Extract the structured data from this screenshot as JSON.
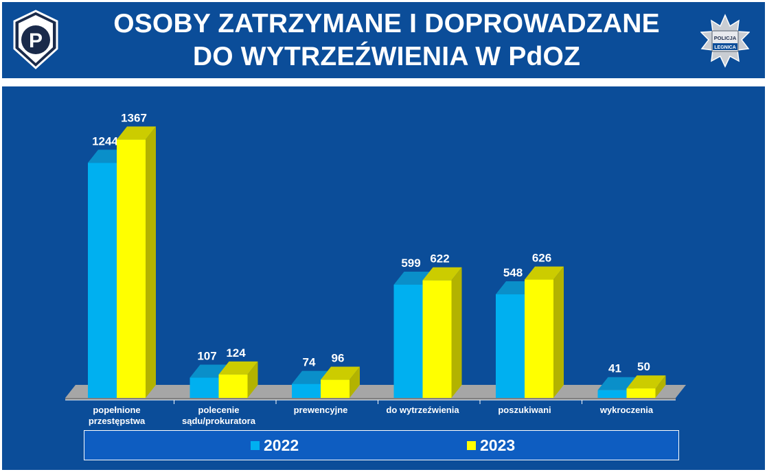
{
  "header": {
    "title_line1": "OSOBY ZATRZYMANE I DOPROWADZANE",
    "title_line2": "DO WYTRZEŹWIENIA W PdOZ",
    "logo_left_letter": "P",
    "badge_text_top": "POLICJA",
    "badge_text_bottom": "LEGNICA"
  },
  "colors": {
    "background": "#0b4d99",
    "series_2022": "#00b0f0",
    "series_2023": "#ffff00"
  },
  "chart_data": {
    "type": "bar",
    "title": "OSOBY ZATRZYMANE I DOPROWADZANE DO WYTRZEŹWIENIA W PdOZ",
    "categories": [
      [
        "popełnione",
        "przestępstwa"
      ],
      [
        "polecenie",
        "sądu/prokuratora"
      ],
      [
        "prewencyjne"
      ],
      [
        "do wytrzeźwienia"
      ],
      [
        "poszukiwani"
      ],
      [
        "wykroczenia"
      ]
    ],
    "series": [
      {
        "name": "2022",
        "values": [
          1244,
          107,
          74,
          599,
          548,
          41
        ]
      },
      {
        "name": "2023",
        "values": [
          1367,
          124,
          96,
          622,
          626,
          50
        ]
      }
    ],
    "ylim": [
      0,
      1400
    ],
    "grid": false,
    "legend_position": "bottom",
    "data_labels": true
  }
}
